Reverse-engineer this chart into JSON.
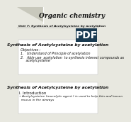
{
  "bg_color": "#e8e8e0",
  "header_title": "Organic chemistry",
  "unit_line": "Unit 7: Synthesis of Acetylcysteine by acetylation",
  "pdf_label": "PDF",
  "pdf_bg": "#1a3a50",
  "slide1_title": "Synthesis of Acetylcysteine by acetylation",
  "slide1_objectives_header": "Objectives :",
  "slide1_obj1": "1.   Understand of Principle of acetylation",
  "slide1_obj2a": "2.   Able use  acetylation  to synthesis interest compounds as",
  "slide1_obj2b": "     acetylcysteine",
  "slide2_title": "Synthesis of Acetylcysteine by acetylation",
  "slide2_section": "I. Introduction",
  "slide2_bullet": "Acetylcysteine (mucolytic agent ) is used to help thin and loosen",
  "slide2_bullet2": "  mucus in the airways",
  "triangle_color": "#c8c8bc",
  "slide_bg": "#ffffff",
  "text_dark": "#111111",
  "text_color": "#333333"
}
